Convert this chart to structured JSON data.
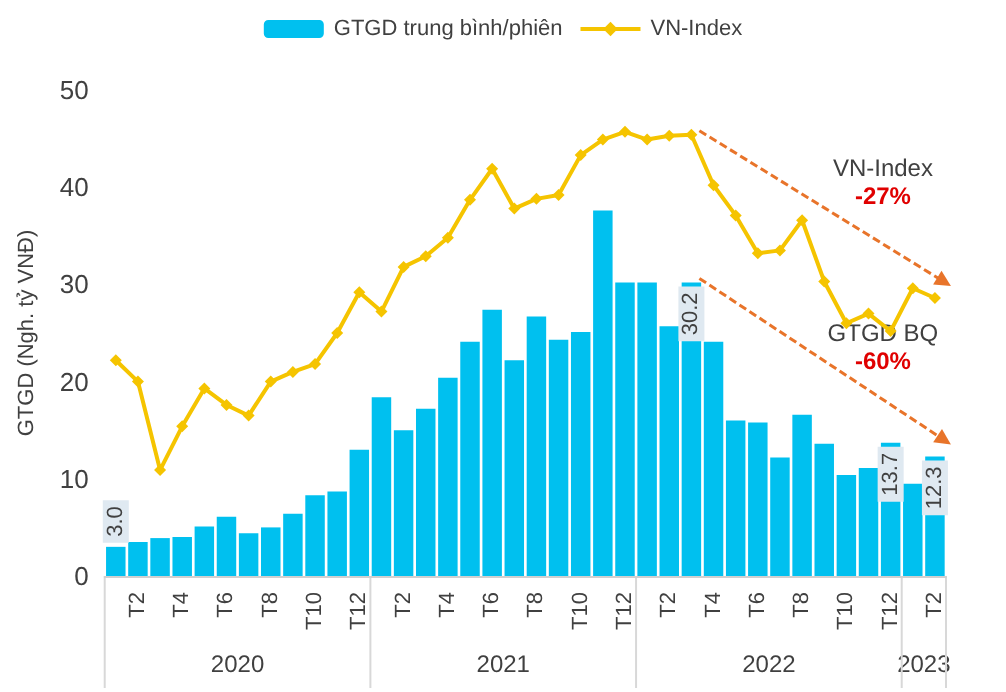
{
  "chart_data": {
    "type": "bar",
    "ylabel": "GTGD (Ngh. tỷ VNĐ)",
    "categories": [
      null,
      "T2",
      null,
      "T4",
      null,
      "T6",
      null,
      "T8",
      null,
      "T10",
      null,
      "T12",
      null,
      "T2",
      null,
      "T4",
      null,
      "T6",
      null,
      "T8",
      null,
      "T10",
      null,
      "T12",
      null,
      "T2",
      null,
      "T4",
      null,
      "T6",
      null,
      "T8",
      null,
      "T10",
      null,
      "T12",
      null,
      "T2"
    ],
    "series": [
      {
        "name": "GTGD trung bình/phiên",
        "color": "#00c0ef",
        "values": [
          3.0,
          3.5,
          3.9,
          4.0,
          5.1,
          6.1,
          4.4,
          5.0,
          6.4,
          8.3,
          8.7,
          13.0,
          18.4,
          15.0,
          17.2,
          20.4,
          24.1,
          27.4,
          22.2,
          26.7,
          24.3,
          25.1,
          37.6,
          30.2,
          30.2,
          25.7,
          30.2,
          24.1,
          16.0,
          15.8,
          12.2,
          16.6,
          13.6,
          10.4,
          11.1,
          13.7,
          9.5,
          12.3
        ],
        "value_labels": [
          "3.0",
          null,
          null,
          null,
          null,
          null,
          null,
          null,
          null,
          null,
          null,
          null,
          null,
          null,
          null,
          null,
          null,
          null,
          null,
          null,
          null,
          null,
          null,
          null,
          null,
          null,
          "30.2",
          null,
          null,
          null,
          null,
          null,
          null,
          null,
          null,
          "13.7",
          null,
          "12.3"
        ]
      },
      {
        "name": "VN-Index",
        "type": "line",
        "color": "#f5c400",
        "values": [
          22.2,
          20.0,
          10.9,
          15.4,
          19.3,
          17.6,
          16.5,
          20.0,
          21.0,
          21.8,
          25.0,
          29.2,
          27.2,
          31.8,
          32.9,
          34.8,
          38.7,
          41.9,
          37.8,
          38.8,
          39.2,
          43.3,
          44.9,
          45.7,
          44.9,
          45.3,
          45.4,
          40.2,
          37.1,
          33.2,
          33.5,
          36.6,
          30.3,
          26.0,
          27.0,
          25.2,
          29.6,
          28.6
        ]
      }
    ],
    "ylim": [
      0,
      50
    ],
    "yticks": [
      0,
      10,
      20,
      30,
      40,
      50
    ],
    "grid": false,
    "legend": "top",
    "marker": "diamond",
    "annotations": [
      "2020",
      "2021",
      "2022",
      "2023",
      "VN-Index",
      "-27%",
      "GTGD BQ",
      "-60%"
    ]
  }
}
